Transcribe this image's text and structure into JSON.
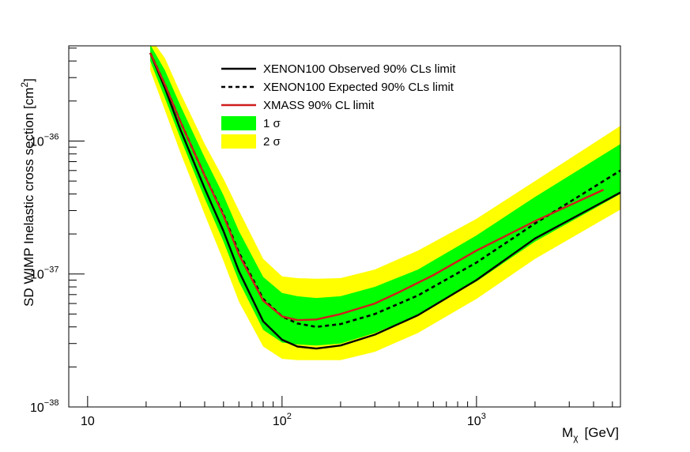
{
  "chart_data": {
    "type": "line",
    "title": "",
    "xlabel": "M",
    "xlabel_sub": "χ",
    "xlabel_unit": "[GeV]",
    "ylabel": "SD WIMP Inelastic cross section   [cm",
    "ylabel_sup": "2",
    "ylabel_close": "]",
    "x_scale": "log",
    "y_scale": "log",
    "xlim": [
      8.0,
      5500
    ],
    "ylim": [
      1e-38,
      5.2e-36
    ],
    "grid": false,
    "legend_position": "top-center",
    "x_ticks": [
      {
        "value": 10,
        "base": "10",
        "exp": ""
      },
      {
        "value": 100,
        "base": "10",
        "exp": "2"
      },
      {
        "value": 1000,
        "base": "10",
        "exp": "3"
      }
    ],
    "y_ticks": [
      {
        "value": 1e-38,
        "base": "10",
        "exp": "−38"
      },
      {
        "value": 1e-37,
        "base": "10",
        "exp": "−37"
      },
      {
        "value": 1e-36,
        "base": "10",
        "exp": "−36"
      }
    ],
    "series": [
      {
        "name": "XENON100 Observed 90% CLs limit",
        "style": "solid",
        "color": "#000000",
        "x": [
          21,
          25,
          30,
          40,
          50,
          60,
          80,
          100,
          120,
          150,
          200,
          300,
          500,
          1000,
          2000,
          5500
        ],
        "y": [
          4.6e-36,
          2.5e-36,
          1.22e-36,
          4.4e-37,
          2.1e-37,
          1.05e-37,
          4.4e-38,
          3.2e-38,
          2.85e-38,
          2.75e-38,
          2.9e-38,
          3.5e-38,
          4.9e-38,
          9e-38,
          1.85e-37,
          4.1e-37
        ]
      },
      {
        "name": "XENON100 Expected 90% CLs limit",
        "style": "dashed",
        "color": "#000000",
        "x": [
          21,
          25,
          30,
          40,
          50,
          60,
          80,
          100,
          120,
          150,
          200,
          300,
          500,
          1000,
          2000,
          5500
        ],
        "y": [
          4.6e-36,
          2.65e-36,
          1.4e-36,
          5.5e-37,
          2.8e-37,
          1.45e-37,
          6.5e-38,
          4.8e-38,
          4.25e-38,
          4e-38,
          4.2e-38,
          5e-38,
          6.9e-38,
          1.22e-37,
          2.4e-37,
          6e-37
        ]
      },
      {
        "name": "XMASS 90% CL limit",
        "style": "solid",
        "color": "#d01c1c",
        "x": [
          21,
          25,
          30,
          40,
          50,
          60,
          80,
          100,
          120,
          150,
          200,
          300,
          400,
          600,
          1000,
          2000,
          4500
        ],
        "y": [
          4.6e-36,
          2.65e-36,
          1.4e-36,
          5.5e-37,
          2.75e-37,
          1.4e-37,
          6.3e-38,
          4.8e-38,
          4.5e-38,
          4.55e-38,
          5e-38,
          6e-38,
          7.3e-38,
          9.8e-38,
          1.5e-37,
          2.5e-37,
          4.3e-37
        ]
      }
    ],
    "bands": [
      {
        "name": "2 σ",
        "color": "#ffff00",
        "x": [
          21,
          25,
          30,
          40,
          50,
          60,
          80,
          100,
          120,
          150,
          200,
          300,
          500,
          1000,
          2000,
          5500
        ],
        "upper": [
          6e-36,
          4.2e-36,
          2.3e-36,
          9.5e-37,
          5.2e-37,
          3e-37,
          1.3e-37,
          9.6e-38,
          9.3e-38,
          9.2e-38,
          9.3e-38,
          1.08e-37,
          1.5e-37,
          2.6e-37,
          5e-37,
          1.3e-36
        ],
        "lower": [
          3.4e-36,
          1.7e-36,
          8.2e-37,
          2.8e-37,
          1.25e-37,
          6.2e-38,
          2.85e-38,
          2.3e-38,
          2.25e-38,
          2.25e-38,
          2.25e-38,
          2.6e-38,
          3.6e-38,
          6.5e-38,
          1.3e-37,
          3.05e-37
        ]
      },
      {
        "name": "1 σ",
        "color": "#00ff00",
        "x": [
          21,
          25,
          30,
          40,
          50,
          60,
          80,
          100,
          120,
          150,
          200,
          300,
          500,
          1000,
          2000,
          5500
        ],
        "upper": [
          5.3e-36,
          3.4e-36,
          1.85e-36,
          7.5e-37,
          3.9e-37,
          2.1e-37,
          9.5e-38,
          7.2e-38,
          6.8e-38,
          6.6e-38,
          6.8e-38,
          8e-38,
          1.08e-37,
          1.95e-37,
          3.8e-37,
          9.5e-37
        ],
        "lower": [
          4e-36,
          2.1e-36,
          1.05e-36,
          3.7e-37,
          1.75e-37,
          8.8e-38,
          3.8e-38,
          3.05e-38,
          2.95e-38,
          2.9e-38,
          3e-38,
          3.6e-38,
          4.9e-38,
          8.8e-38,
          1.75e-37,
          4e-37
        ]
      }
    ],
    "legend": [
      {
        "label": "XENON100 Observed 90% CLs limit",
        "kind": "line",
        "style": "solid",
        "color": "#000000"
      },
      {
        "label": "XENON100 Expected 90% CLs limit",
        "kind": "line",
        "style": "dashed",
        "color": "#000000"
      },
      {
        "label": "XMASS 90% CL limit",
        "kind": "line",
        "style": "solid",
        "color": "#d01c1c"
      },
      {
        "label": "1 σ",
        "kind": "box",
        "color": "#00ff00"
      },
      {
        "label": "2 σ",
        "kind": "box",
        "color": "#ffff00"
      }
    ]
  }
}
